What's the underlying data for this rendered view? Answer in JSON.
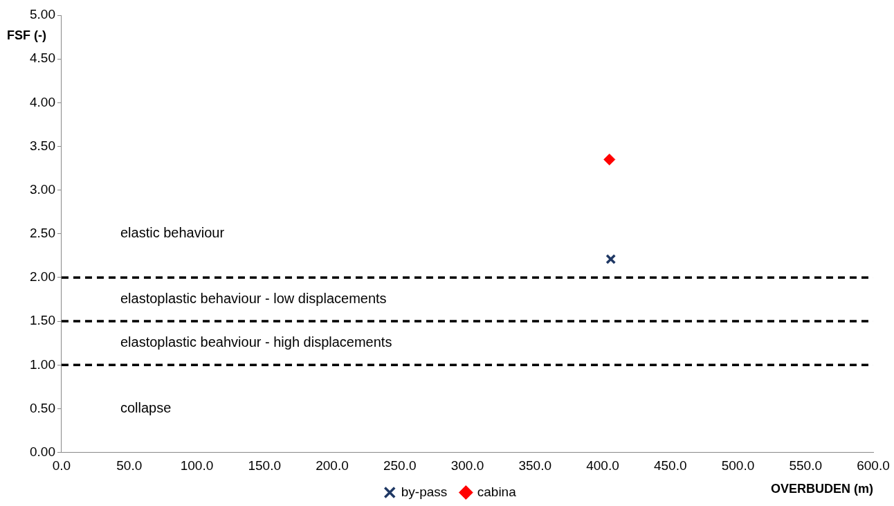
{
  "chart_data": {
    "type": "scatter",
    "xlabel": "OVERBUDEN (m)",
    "ylabel": "FSF (-)",
    "xlim": [
      0,
      600
    ],
    "xticks": [
      {
        "value": 0,
        "label": "0.0"
      },
      {
        "value": 50,
        "label": "50.0"
      },
      {
        "value": 100,
        "label": "100.0"
      },
      {
        "value": 150,
        "label": "150.0"
      },
      {
        "value": 200,
        "label": "200.0"
      },
      {
        "value": 250,
        "label": "250.0"
      },
      {
        "value": 300,
        "label": "300.0"
      },
      {
        "value": 350,
        "label": "350.0"
      },
      {
        "value": 400,
        "label": "400.0"
      },
      {
        "value": 450,
        "label": "450.0"
      },
      {
        "value": 500,
        "label": "500.0"
      },
      {
        "value": 550,
        "label": "550.0"
      },
      {
        "value": 600,
        "label": "600.0"
      }
    ],
    "ylim": [
      0,
      5
    ],
    "yticks": [
      {
        "value": 0,
        "label": "0.00"
      },
      {
        "value": 0.5,
        "label": "0.50"
      },
      {
        "value": 1,
        "label": "1.00"
      },
      {
        "value": 1.5,
        "label": "1.50"
      },
      {
        "value": 2,
        "label": "2.00"
      },
      {
        "value": 2.5,
        "label": "2.50"
      },
      {
        "value": 3,
        "label": "3.00"
      },
      {
        "value": 3.5,
        "label": "3.50"
      },
      {
        "value": 4,
        "label": "4.00"
      },
      {
        "value": 4.5,
        "label": "4.50"
      },
      {
        "value": 5,
        "label": "5.00"
      }
    ],
    "series": [
      {
        "name": "by-pass",
        "color": "#1f3864",
        "marker": "cross",
        "x": [
          406
        ],
        "values": [
          2.21
        ]
      },
      {
        "name": "cabina",
        "color": "#ff0000",
        "marker": "diamond",
        "x": [
          405
        ],
        "values": [
          3.35
        ]
      }
    ],
    "ref_lines": [
      {
        "axis": "y",
        "value": 2,
        "color": "#000000",
        "line_style": "dashed"
      },
      {
        "axis": "y",
        "value": 1.5,
        "color": "#000000",
        "line_style": "dashed"
      },
      {
        "axis": "y",
        "value": 1,
        "color": "#000000",
        "line_style": "dashed"
      }
    ],
    "annotations": [
      "elastic behaviour",
      "elastoplastic behaviour - low displacements",
      "elastoplastic beahviour - high displacements",
      "collapse"
    ],
    "grid": false,
    "legend": "bottom"
  }
}
